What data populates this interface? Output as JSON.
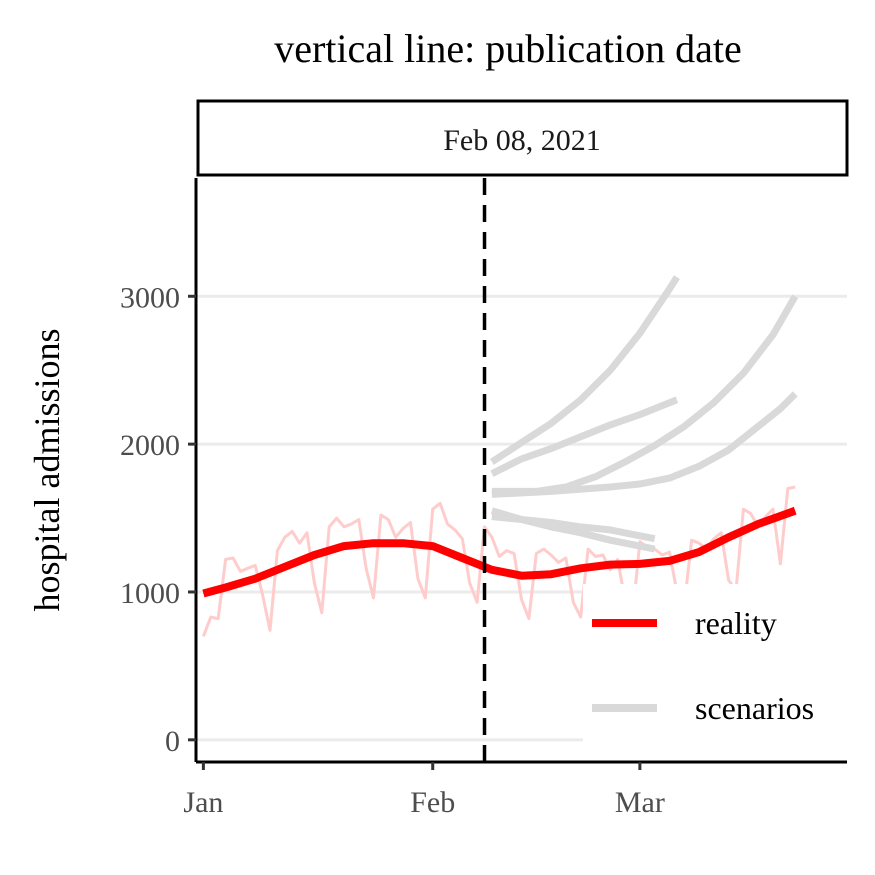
{
  "chart_data": {
    "type": "line",
    "title": "vertical line: publication date",
    "facet_label": "Feb 08, 2021",
    "xlabel": "",
    "ylabel": "hospital admissions",
    "x_range": [
      "2020-12-31",
      "2021-03-29"
    ],
    "ylim": [
      -150,
      3800
    ],
    "x_ticks": [
      {
        "date": "2021-01-01",
        "label": "Jan"
      },
      {
        "date": "2021-02-01",
        "label": "Feb"
      },
      {
        "date": "2021-03-01",
        "label": "Mar"
      }
    ],
    "y_ticks": [
      0,
      1000,
      2000,
      3000
    ],
    "grid": "horizontal major",
    "publication_date": "2021-02-08",
    "legend": {
      "position": "bottom-right",
      "entries": [
        {
          "label": "reality",
          "color": "#ff0000"
        },
        {
          "label": "scenarios",
          "color": "#d9d9d9"
        }
      ]
    },
    "colors": {
      "reality": "#ff0000",
      "daily": "#ffcccc",
      "scenarios": "#d9d9d9",
      "grid": "#ebebeb",
      "publication_line": "#000000"
    },
    "series": [
      {
        "name": "reality",
        "role": "smooth",
        "points": [
          [
            "2021-01-01",
            990
          ],
          [
            "2021-01-04",
            1030
          ],
          [
            "2021-01-08",
            1090
          ],
          [
            "2021-01-12",
            1170
          ],
          [
            "2021-01-16",
            1250
          ],
          [
            "2021-01-20",
            1310
          ],
          [
            "2021-01-24",
            1330
          ],
          [
            "2021-01-28",
            1330
          ],
          [
            "2021-02-01",
            1310
          ],
          [
            "2021-02-05",
            1230
          ],
          [
            "2021-02-09",
            1150
          ],
          [
            "2021-02-13",
            1110
          ],
          [
            "2021-02-17",
            1120
          ],
          [
            "2021-02-21",
            1160
          ],
          [
            "2021-02-25",
            1185
          ],
          [
            "2021-03-01",
            1190
          ],
          [
            "2021-03-05",
            1210
          ],
          [
            "2021-03-09",
            1270
          ],
          [
            "2021-03-13",
            1370
          ],
          [
            "2021-03-17",
            1460
          ],
          [
            "2021-03-22",
            1550
          ]
        ]
      },
      {
        "name": "daily",
        "role": "raw",
        "points": [
          [
            "2021-01-01",
            700
          ],
          [
            "2021-01-02",
            830
          ],
          [
            "2021-01-03",
            820
          ],
          [
            "2021-01-04",
            1220
          ],
          [
            "2021-01-05",
            1230
          ],
          [
            "2021-01-06",
            1140
          ],
          [
            "2021-01-07",
            1160
          ],
          [
            "2021-01-08",
            1180
          ],
          [
            "2021-01-09",
            980
          ],
          [
            "2021-01-10",
            740
          ],
          [
            "2021-01-11",
            1280
          ],
          [
            "2021-01-12",
            1370
          ],
          [
            "2021-01-13",
            1410
          ],
          [
            "2021-01-14",
            1330
          ],
          [
            "2021-01-15",
            1400
          ],
          [
            "2021-01-16",
            1060
          ],
          [
            "2021-01-17",
            860
          ],
          [
            "2021-01-18",
            1440
          ],
          [
            "2021-01-19",
            1500
          ],
          [
            "2021-01-20",
            1440
          ],
          [
            "2021-01-21",
            1460
          ],
          [
            "2021-01-22",
            1490
          ],
          [
            "2021-01-23",
            1160
          ],
          [
            "2021-01-24",
            960
          ],
          [
            "2021-01-25",
            1520
          ],
          [
            "2021-01-26",
            1490
          ],
          [
            "2021-01-27",
            1370
          ],
          [
            "2021-01-28",
            1430
          ],
          [
            "2021-01-29",
            1470
          ],
          [
            "2021-01-30",
            1090
          ],
          [
            "2021-01-31",
            960
          ],
          [
            "2021-02-01",
            1560
          ],
          [
            "2021-02-02",
            1600
          ],
          [
            "2021-02-03",
            1460
          ],
          [
            "2021-02-04",
            1420
          ],
          [
            "2021-02-05",
            1360
          ],
          [
            "2021-02-06",
            1060
          ],
          [
            "2021-02-07",
            930
          ],
          [
            "2021-02-08",
            1440
          ],
          [
            "2021-02-09",
            1370
          ],
          [
            "2021-02-10",
            1240
          ],
          [
            "2021-02-11",
            1280
          ],
          [
            "2021-02-12",
            1260
          ],
          [
            "2021-02-13",
            950
          ],
          [
            "2021-02-14",
            820
          ],
          [
            "2021-02-15",
            1260
          ],
          [
            "2021-02-16",
            1290
          ],
          [
            "2021-02-17",
            1250
          ],
          [
            "2021-02-18",
            1200
          ],
          [
            "2021-02-19",
            1230
          ],
          [
            "2021-02-20",
            930
          ],
          [
            "2021-02-21",
            830
          ],
          [
            "2021-02-22",
            1290
          ],
          [
            "2021-02-23",
            1240
          ],
          [
            "2021-02-24",
            1250
          ],
          [
            "2021-02-25",
            1150
          ],
          [
            "2021-02-26",
            1220
          ],
          [
            "2021-02-27",
            940
          ],
          [
            "2021-02-28",
            840
          ],
          [
            "2021-03-01",
            1340
          ],
          [
            "2021-03-02",
            1300
          ],
          [
            "2021-03-03",
            1290
          ],
          [
            "2021-03-04",
            1250
          ],
          [
            "2021-03-05",
            1270
          ],
          [
            "2021-03-06",
            1000
          ],
          [
            "2021-03-07",
            910
          ],
          [
            "2021-03-08",
            1350
          ],
          [
            "2021-03-09",
            1330
          ],
          [
            "2021-03-10",
            1290
          ],
          [
            "2021-03-11",
            1360
          ],
          [
            "2021-03-12",
            1400
          ],
          [
            "2021-03-13",
            1080
          ],
          [
            "2021-03-14",
            1010
          ],
          [
            "2021-03-15",
            1560
          ],
          [
            "2021-03-16",
            1530
          ],
          [
            "2021-03-17",
            1440
          ],
          [
            "2021-03-18",
            1510
          ],
          [
            "2021-03-19",
            1560
          ],
          [
            "2021-03-20",
            1190
          ],
          [
            "2021-03-21",
            1700
          ],
          [
            "2021-03-22",
            1710
          ]
        ]
      },
      {
        "name": "scenarios",
        "role": "scenario",
        "points": [
          [
            "2021-02-09",
            1880
          ],
          [
            "2021-02-13",
            2010
          ],
          [
            "2021-02-17",
            2140
          ],
          [
            "2021-02-21",
            2300
          ],
          [
            "2021-02-25",
            2500
          ],
          [
            "2021-03-01",
            2750
          ],
          [
            "2021-03-03",
            2900
          ],
          [
            "2021-03-05",
            3050
          ],
          [
            "2021-03-06",
            3130
          ]
        ]
      },
      {
        "name": "scenarios",
        "role": "scenario",
        "points": [
          [
            "2021-02-09",
            1800
          ],
          [
            "2021-02-13",
            1900
          ],
          [
            "2021-02-17",
            1970
          ],
          [
            "2021-02-21",
            2050
          ],
          [
            "2021-02-25",
            2130
          ],
          [
            "2021-03-01",
            2200
          ],
          [
            "2021-03-03",
            2240
          ],
          [
            "2021-03-05",
            2280
          ],
          [
            "2021-03-06",
            2300
          ]
        ]
      },
      {
        "name": "scenarios",
        "role": "scenario",
        "points": [
          [
            "2021-02-09",
            1680
          ],
          [
            "2021-02-15",
            1680
          ],
          [
            "2021-02-19",
            1710
          ],
          [
            "2021-02-23",
            1780
          ],
          [
            "2021-02-27",
            1880
          ],
          [
            "2021-03-03",
            1990
          ],
          [
            "2021-03-07",
            2120
          ],
          [
            "2021-03-11",
            2280
          ],
          [
            "2021-03-15",
            2480
          ],
          [
            "2021-03-19",
            2740
          ],
          [
            "2021-03-22",
            3000
          ]
        ]
      },
      {
        "name": "scenarios",
        "role": "scenario",
        "points": [
          [
            "2021-02-09",
            1660
          ],
          [
            "2021-02-17",
            1680
          ],
          [
            "2021-02-25",
            1710
          ],
          [
            "2021-03-01",
            1730
          ],
          [
            "2021-03-05",
            1770
          ],
          [
            "2021-03-09",
            1850
          ],
          [
            "2021-03-13",
            1960
          ],
          [
            "2021-03-17",
            2120
          ],
          [
            "2021-03-20",
            2240
          ],
          [
            "2021-03-22",
            2340
          ]
        ]
      },
      {
        "name": "scenarios",
        "role": "scenario",
        "points": [
          [
            "2021-02-09",
            1550
          ],
          [
            "2021-02-13",
            1490
          ],
          [
            "2021-02-17",
            1440
          ],
          [
            "2021-02-21",
            1400
          ],
          [
            "2021-02-25",
            1350
          ],
          [
            "2021-03-01",
            1310
          ],
          [
            "2021-03-03",
            1290
          ]
        ]
      },
      {
        "name": "scenarios",
        "role": "scenario",
        "points": [
          [
            "2021-02-09",
            1510
          ],
          [
            "2021-02-13",
            1490
          ],
          [
            "2021-02-17",
            1470
          ],
          [
            "2021-02-21",
            1440
          ],
          [
            "2021-02-25",
            1420
          ],
          [
            "2021-03-01",
            1380
          ],
          [
            "2021-03-03",
            1360
          ]
        ]
      }
    ]
  }
}
